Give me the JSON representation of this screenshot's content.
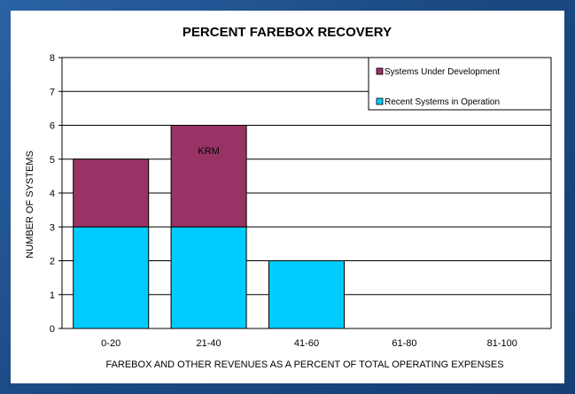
{
  "colors": {
    "operation": "#00ccff",
    "development": "#993366",
    "frame": "#1f4f8a"
  },
  "chart_data": {
    "type": "bar",
    "stacked": true,
    "title": "PERCENT FAREBOX RECOVERY",
    "xlabel": "FAREBOX AND OTHER REVENUES AS A PERCENT OF TOTAL OPERATING EXPENSES",
    "ylabel": "NUMBER OF SYSTEMS",
    "categories": [
      "0-20",
      "21-40",
      "41-60",
      "61-80",
      "81-100"
    ],
    "ylim": [
      0,
      8
    ],
    "yticks": [
      0,
      1,
      2,
      3,
      4,
      5,
      6,
      7,
      8
    ],
    "grid": true,
    "legend": "top-right",
    "series": [
      {
        "name": "Recent Systems in Operation",
        "color": "#00ccff",
        "values": [
          3,
          3,
          2,
          0,
          0
        ]
      },
      {
        "name": "Systems Under Development",
        "color": "#993366",
        "values": [
          2,
          3,
          0,
          0,
          0
        ]
      }
    ],
    "legend_order": [
      "Systems Under Development",
      "Recent Systems in Operation"
    ],
    "annotations": [
      {
        "text": "KRM",
        "category": "21-40",
        "series": "Systems Under Development"
      }
    ]
  }
}
